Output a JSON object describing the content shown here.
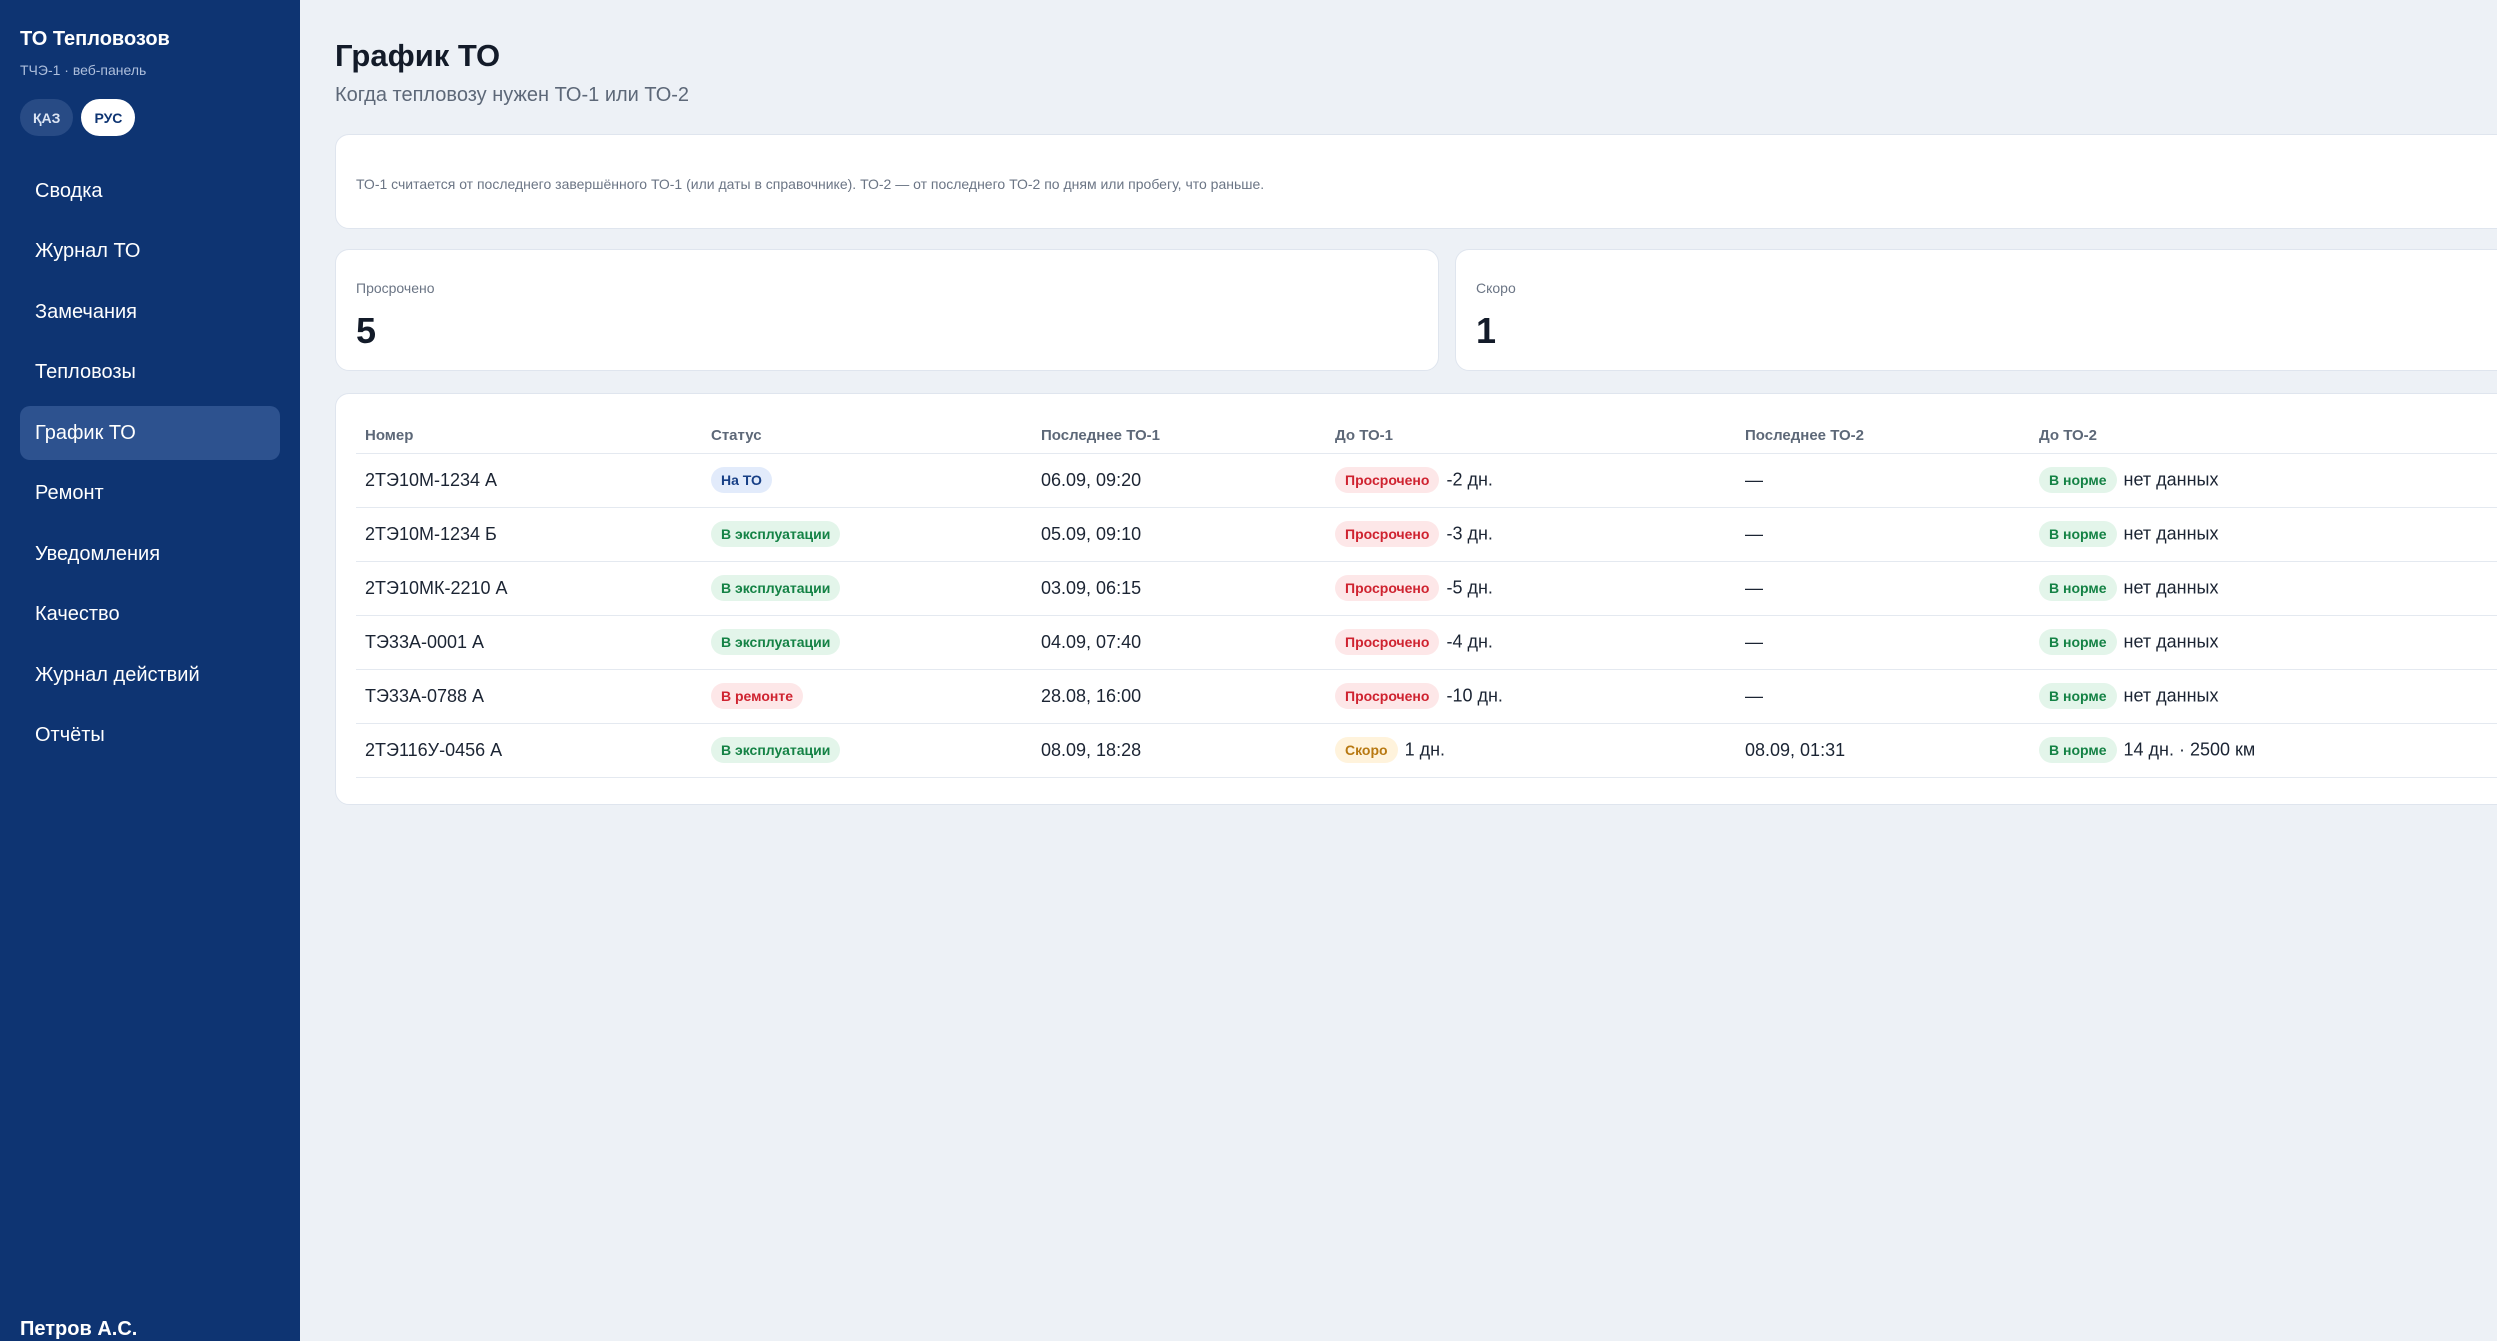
{
  "sidebar": {
    "title": "ТО Тепловозов",
    "subtitle": "ТЧЭ-1 · веб-панель",
    "languages": [
      {
        "label": "ҚАЗ",
        "active": false
      },
      {
        "label": "РУС",
        "active": true
      }
    ],
    "nav": [
      {
        "label": "Сводка",
        "active": false
      },
      {
        "label": "Журнал ТО",
        "active": false
      },
      {
        "label": "Замечания",
        "active": false
      },
      {
        "label": "Тепловозы",
        "active": false
      },
      {
        "label": "График ТО",
        "active": true
      },
      {
        "label": "Ремонт",
        "active": false
      },
      {
        "label": "Уведомления",
        "active": false
      },
      {
        "label": "Качество",
        "active": false
      },
      {
        "label": "Журнал действий",
        "active": false
      },
      {
        "label": "Отчёты",
        "active": false
      }
    ],
    "user": "Петров А.С."
  },
  "header": {
    "title": "График ТО",
    "subtitle": "Когда тепловозу нужен ТО-1 или ТО-2"
  },
  "info": {
    "text": "ТО-1 считается от последнего завершённого ТО-1 (или даты в справочнике). ТО-2 — от последнего ТО-2 по дням или пробегу, что раньше."
  },
  "stats": [
    {
      "label": "Просрочено",
      "value": "5"
    },
    {
      "label": "Скоро",
      "value": "1"
    }
  ],
  "table": {
    "columns": [
      "Номер",
      "Статус",
      "Последнее ТО-1",
      "До ТО-1",
      "Последнее ТО-2",
      "До ТО-2"
    ],
    "rows": [
      {
        "number": "2ТЭ10М-1234 А",
        "status": "На ТО",
        "status_color": "#173f86",
        "last_to1": "06.09, 09:20",
        "to1_badge": "Просрочено",
        "to1_value": "-2 дн.",
        "last_to2": "—",
        "to2_badge": "В норме",
        "to2_value": "нет данных"
      },
      {
        "number": "2ТЭ10М-1234 Б",
        "status": "В эксплуатации",
        "status_color": "#148245",
        "last_to1": "05.09, 09:10",
        "to1_badge": "Просрочено",
        "to1_value": "-3 дн.",
        "last_to2": "—",
        "to2_badge": "В норме",
        "to2_value": "нет данных"
      },
      {
        "number": "2ТЭ10МК-2210 А",
        "status": "В эксплуатации",
        "status_color": "#148245",
        "last_to1": "03.09, 06:15",
        "to1_badge": "Просрочено",
        "to1_value": "-5 дн.",
        "last_to2": "—",
        "to2_badge": "В норме",
        "to2_value": "нет данных"
      },
      {
        "number": "ТЭ33А-0001 А",
        "status": "В эксплуатации",
        "status_color": "#148245",
        "last_to1": "04.09, 07:40",
        "to1_badge": "Просрочено",
        "to1_value": "-4 дн.",
        "last_to2": "—",
        "to2_badge": "В норме",
        "to2_value": "нет данных"
      },
      {
        "number": "ТЭ33А-0788 А",
        "status": "В ремонте",
        "status_color": "#cf2330",
        "last_to1": "28.08, 16:00",
        "to1_badge": "Просрочено",
        "to1_value": "-10 дн.",
        "last_to2": "—",
        "to2_badge": "В норме",
        "to2_value": "нет данных"
      },
      {
        "number": "2ТЭ116У-0456 А",
        "status": "В эксплуатации",
        "status_color": "#148245",
        "last_to1": "08.09, 18:28",
        "to1_badge": "Скоро",
        "to1_value": "1 дн.",
        "last_to2": "08.09, 01:31",
        "to2_badge": "В норме",
        "to2_value": "14 дн. · 2500 км"
      }
    ]
  },
  "colors": {
    "sidebar_bg": "#0e3472",
    "page_bg": "#edf1f6",
    "badge_overdue": "#cf2330",
    "badge_soon": "#b87912",
    "badge_ok": "#148245",
    "badge_on_to": "#173f86"
  }
}
